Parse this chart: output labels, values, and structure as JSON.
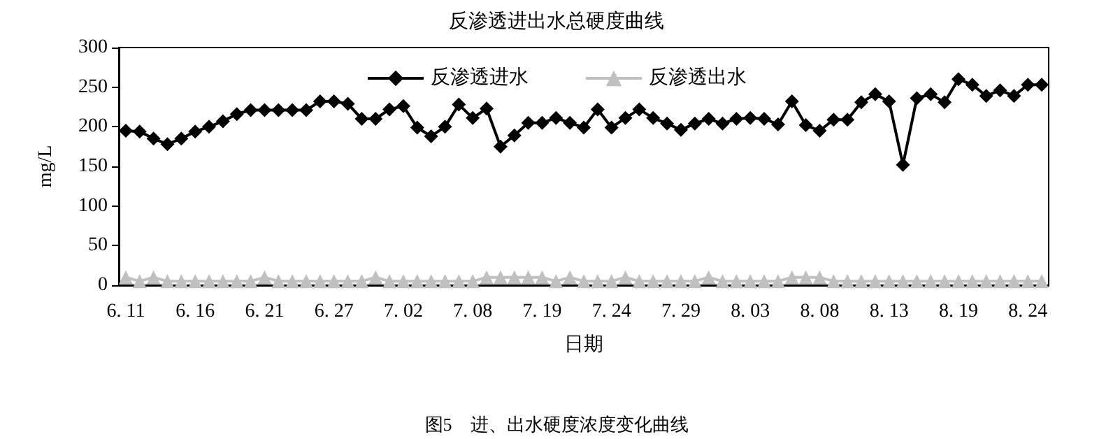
{
  "chart_data": {
    "type": "line",
    "title": "反渗透进出水总硬度曲线",
    "xlabel": "日期",
    "ylabel": "mg/L",
    "annotations": [
      "图5　进、出水硬度浓度变化曲线"
    ],
    "categories": [
      "6. 11",
      null,
      null,
      null,
      null,
      "6. 16",
      null,
      null,
      null,
      null,
      "6. 21",
      null,
      null,
      null,
      null,
      "6. 27",
      null,
      null,
      null,
      null,
      "7. 02",
      null,
      null,
      null,
      null,
      "7. 08",
      null,
      null,
      null,
      null,
      "7. 19",
      null,
      null,
      null,
      null,
      "7. 24",
      null,
      null,
      null,
      null,
      "7. 29",
      null,
      null,
      null,
      null,
      "8. 03",
      null,
      null,
      null,
      null,
      "8. 08",
      null,
      null,
      null,
      null,
      "8. 13",
      null,
      null,
      null,
      null,
      "8. 19",
      null,
      null,
      null,
      null,
      "8. 24",
      null
    ],
    "series": [
      {
        "name": "反渗透进水",
        "color": "#000000",
        "marker": "diamond",
        "values": [
          195,
          194,
          185,
          178,
          185,
          194,
          200,
          207,
          216,
          221,
          221,
          221,
          221,
          221,
          232,
          232,
          229,
          210,
          210,
          222,
          226,
          199,
          188,
          200,
          228,
          211,
          223,
          175,
          189,
          205,
          205,
          211,
          205,
          199,
          222,
          199,
          211,
          222,
          211,
          204,
          196,
          204,
          210,
          204,
          210,
          211,
          210,
          203,
          232,
          202,
          195,
          209,
          209,
          231,
          241,
          232,
          152,
          236,
          241,
          231,
          260,
          253,
          239,
          246,
          239,
          253,
          253
        ]
      },
      {
        "name": "反渗透出水",
        "color": "#c0c0c0",
        "marker": "triangle",
        "values": [
          10,
          5,
          10,
          5,
          5,
          5,
          5,
          5,
          5,
          5,
          10,
          5,
          5,
          5,
          5,
          5,
          5,
          5,
          10,
          5,
          5,
          5,
          5,
          5,
          5,
          5,
          10,
          10,
          10,
          10,
          10,
          5,
          10,
          5,
          5,
          5,
          10,
          5,
          5,
          5,
          5,
          5,
          10,
          5,
          5,
          5,
          5,
          5,
          10,
          10,
          10,
          5,
          5,
          5,
          5,
          5,
          5,
          5,
          5,
          5,
          5,
          5,
          5,
          5,
          5,
          5,
          5
        ]
      }
    ],
    "ylim": [
      0,
      300
    ],
    "yticks": [
      0,
      50,
      100,
      150,
      200,
      250,
      300
    ],
    "legend": "top",
    "line_style": "solid"
  }
}
